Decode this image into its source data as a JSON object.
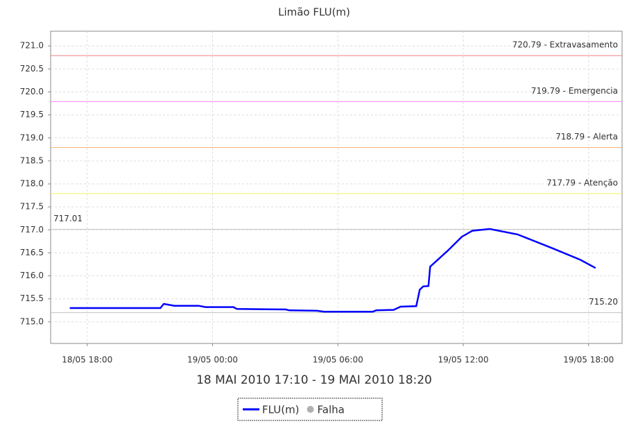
{
  "chart_data": {
    "type": "line",
    "title": "Limão FLU(m)",
    "subtitle": "18 MAI 2010 17:10 - 19 MAI 2010 18:20",
    "xlim": [
      "18/05 16:15",
      "19/05 19:36"
    ],
    "xticks": [
      "18/05 18:00",
      "19/05 00:00",
      "19/05 06:00",
      "19/05 12:00",
      "19/05 18:00"
    ],
    "ylim": [
      714.53,
      721.32
    ],
    "yticks": [
      {
        "value": 715,
        "label": "715.0"
      },
      715.5,
      {
        "value": 716,
        "label": "716.0"
      },
      716.5,
      {
        "value": 717,
        "label": "717.0"
      },
      717.5,
      {
        "value": 718,
        "label": "718.0"
      },
      718.5,
      {
        "value": 719,
        "label": "719.0"
      },
      719.5,
      {
        "value": 720,
        "label": "720.0"
      },
      720.5,
      {
        "value": 721,
        "label": "721.0"
      }
    ],
    "grid": true,
    "thresholds": [
      {
        "value": 720.79,
        "label": "720.79 - Extravasamento",
        "color": "#f08080",
        "anchor": "right"
      },
      {
        "value": 719.79,
        "label": "719.79 - Emergencia",
        "color": "#ff80ff",
        "anchor": "right"
      },
      {
        "value": 718.79,
        "label": "718.79 - Alerta",
        "color": "#f0b070",
        "anchor": "right"
      },
      {
        "value": 717.79,
        "label": "717.79 - Atenção",
        "color": "#f0f060",
        "anchor": "right"
      },
      {
        "value": 717.01,
        "label": "717.01",
        "color": "#c0c0c0",
        "anchor": "left"
      },
      {
        "value": 715.2,
        "label": "715.20",
        "color": "#c0c0c0",
        "anchor": "right"
      }
    ],
    "series": [
      {
        "name": "FLU(m)",
        "color": "#0000ff",
        "x": [
          "18/05 17:10",
          "18/05 21:30",
          "18/05 21:40",
          "18/05 22:10",
          "18/05 23:20",
          "18/05 23:40",
          "19/05 01:00",
          "19/05 01:10",
          "19/05 03:30",
          "19/05 03:40",
          "19/05 05:00",
          "19/05 05:20",
          "19/05 07:40",
          "19/05 07:50",
          "19/05 08:40",
          "19/05 09:00",
          "19/05 09:45",
          "19/05 09:55",
          "19/05 10:05",
          "19/05 10:20",
          "19/05 10:25",
          "19/05 11:16",
          "19/05 11:56",
          "19/05 12:26",
          "19/05 13:16",
          "19/05 14:36",
          "19/05 16:16",
          "19/05 17:36",
          "19/05 18:20"
        ],
        "values": [
          715.3,
          715.3,
          715.39,
          715.35,
          715.35,
          715.32,
          715.32,
          715.28,
          715.27,
          715.25,
          715.24,
          715.22,
          715.22,
          715.25,
          715.26,
          715.33,
          715.34,
          715.7,
          715.77,
          715.78,
          716.2,
          716.55,
          716.85,
          716.98,
          717.02,
          716.9,
          716.6,
          716.35,
          716.17
        ]
      },
      {
        "name": "Falha",
        "color": "#b0b0b0",
        "x": [],
        "values": []
      }
    ]
  }
}
